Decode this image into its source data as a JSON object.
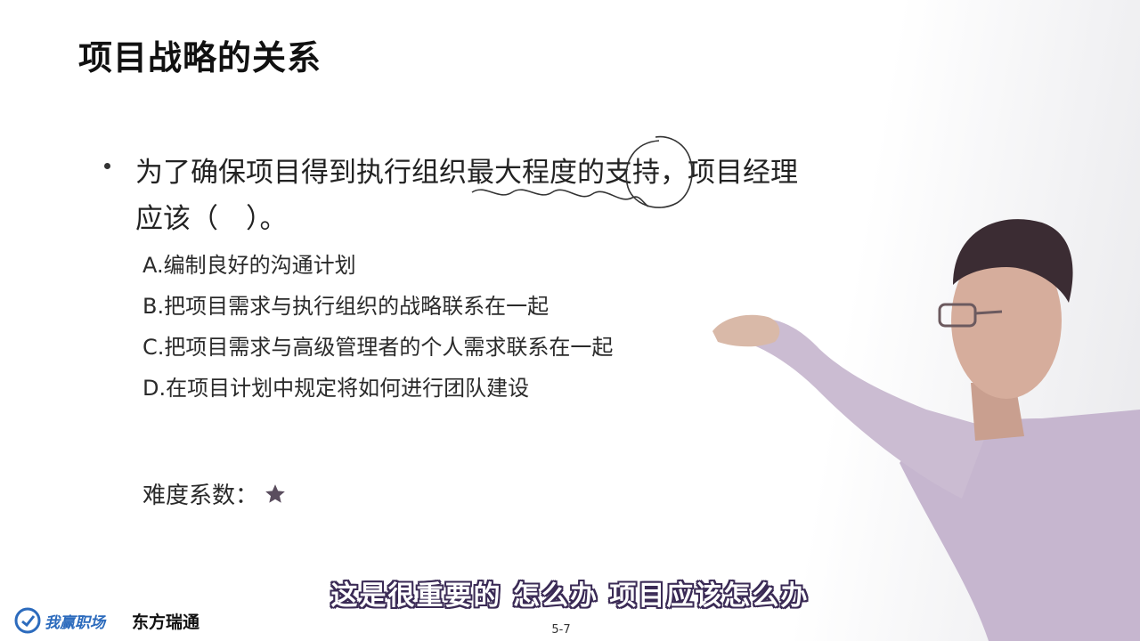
{
  "slide": {
    "title": "项目战略的关系",
    "question": "为了确保项目得到执行组织最大程度的支持，项目经理应该（　）。",
    "options": [
      "A.编制良好的沟通计划",
      "B.把项目需求与执行组织的战略联系在一起",
      "C.把项目需求与高级管理者的个人需求联系在一起",
      "D.在项目计划中规定将如何进行团队建设"
    ],
    "difficulty_label": "难度系数：",
    "difficulty_stars": 1,
    "page_number": "5-7"
  },
  "subtitle": "这是很重要的 怎么办 项目应该怎么办",
  "branding": {
    "logo_left": "我赢职场",
    "logo_right": "东方瑞通",
    "accent_color": "#2c6bbd"
  }
}
